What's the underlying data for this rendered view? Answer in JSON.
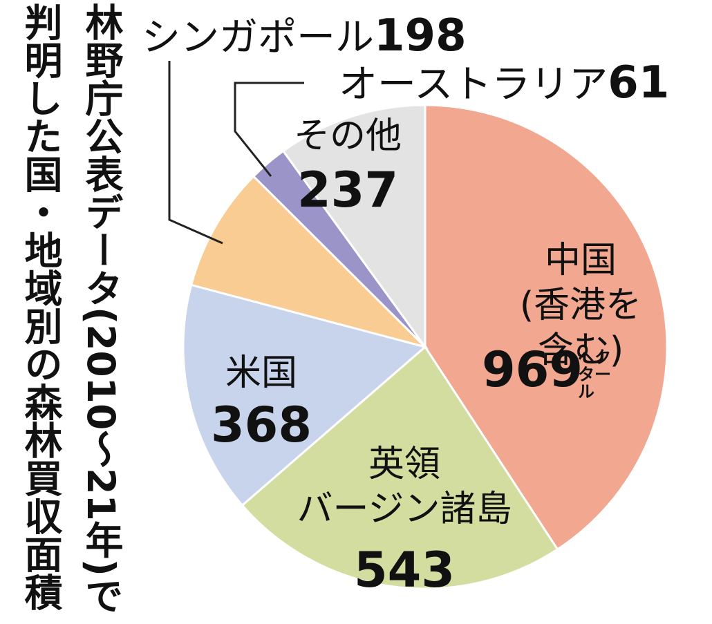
{
  "chart_data": {
    "type": "pie",
    "title_lines": [
      "林野庁公表データ(2010〜21年)で",
      "判明した国・地域別の森林買収面積"
    ],
    "categories": [
      "中国\n(香港を含む)",
      "英領\nバージン諸島",
      "米国",
      "シンガポール",
      "オーストラリア",
      "その他"
    ],
    "values": [
      969,
      543,
      368,
      198,
      61,
      237
    ],
    "unit": "ヘクタール",
    "colors": [
      "#f2a890",
      "#d3dd9f",
      "#c8d3ec",
      "#f8cc92",
      "#9a94c9",
      "#e3e3e3"
    ]
  }
}
